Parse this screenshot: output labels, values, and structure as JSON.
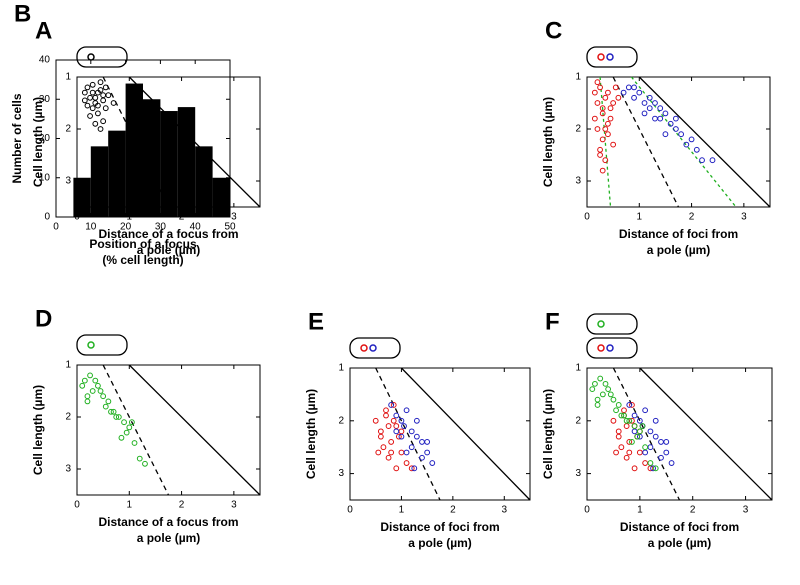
{
  "chart_data": [
    {
      "type": "scatter",
      "panel": "A",
      "ylabel": "Cell length (µm)",
      "xlabel": [
        "Distance of a focus from",
        "a pole (µm)"
      ],
      "xlim": [
        0,
        3.5
      ],
      "ylim": [
        3.5,
        1
      ],
      "xticks": [
        0,
        1,
        2,
        3
      ],
      "yticks": [
        1,
        2,
        3
      ],
      "cell_icons": [
        [
          "#000000"
        ]
      ],
      "lines": [
        {
          "x": [
            1,
            3.5
          ],
          "y": [
            1,
            3.5
          ],
          "color": "#000000",
          "dash": "none"
        },
        {
          "x": [
            0.5,
            1.75
          ],
          "y": [
            1,
            3.5
          ],
          "color": "#000000",
          "dash": "5,4"
        }
      ],
      "series": [
        {
          "color": "#000000",
          "x": [
            0.15,
            0.2,
            0.25,
            0.3,
            0.35,
            0.4,
            0.45,
            0.5,
            0.55,
            0.2,
            0.3,
            0.4,
            0.5,
            0.25,
            0.35,
            0.45,
            0.15,
            0.3,
            0.4,
            0.55,
            0.6,
            0.35,
            0.45,
            0.5,
            0.7
          ],
          "values": [
            1.3,
            1.2,
            1.4,
            1.15,
            1.5,
            1.3,
            1.25,
            1.45,
            1.2,
            1.55,
            1.6,
            1.7,
            1.35,
            1.75,
            1.4,
            1.1,
            1.45,
            1.3,
            1.55,
            1.6,
            1.35,
            1.9,
            2.0,
            1.85,
            1.5
          ]
        }
      ]
    },
    {
      "type": "histogram",
      "panel": "B",
      "ylabel": "Number of cells",
      "xlabel": [
        "Position of a focus",
        "(% cell length)"
      ],
      "xlim": [
        0,
        50
      ],
      "ylim": [
        0,
        40
      ],
      "xticks": [
        0,
        10,
        20,
        30,
        40,
        50
      ],
      "yticks": [
        0,
        10,
        20,
        30,
        40
      ],
      "color": "#000000",
      "bins": [
        5,
        10,
        15,
        20,
        25,
        30,
        35,
        40,
        45,
        50
      ],
      "values": [
        10,
        18,
        22,
        34,
        30,
        27,
        28,
        18,
        10
      ]
    },
    {
      "type": "scatter",
      "panel": "C",
      "ylabel": "Cell length (µm)",
      "xlabel": [
        "Distance of  foci from",
        "a pole (µm)"
      ],
      "xlim": [
        0,
        3.5
      ],
      "ylim": [
        3.5,
        1
      ],
      "xticks": [
        0,
        1,
        2,
        3
      ],
      "yticks": [
        1,
        2,
        3
      ],
      "cell_icons": [
        [
          "#e01010",
          "#2020c0"
        ]
      ],
      "lines": [
        {
          "x": [
            1,
            3.5
          ],
          "y": [
            1,
            3.5
          ],
          "color": "#000000",
          "dash": "none"
        },
        {
          "x": [
            0.5,
            1.75
          ],
          "y": [
            1,
            3.5
          ],
          "color": "#000000",
          "dash": "5,4"
        },
        {
          "x": [
            0.25,
            0.45
          ],
          "y": [
            1,
            3.5
          ],
          "color": "#20b020",
          "dash": "3,3"
        },
        {
          "x": [
            0.85,
            2.85
          ],
          "y": [
            1,
            3.5
          ],
          "color": "#20b020",
          "dash": "3,3"
        }
      ],
      "series": [
        {
          "color": "#e01010",
          "x": [
            0.15,
            0.2,
            0.25,
            0.3,
            0.35,
            0.4,
            0.45,
            0.2,
            0.3,
            0.4,
            0.15,
            0.25,
            0.35,
            0.5,
            0.55,
            0.3,
            0.4,
            0.2,
            0.45,
            0.35,
            0.25,
            0.5,
            0.6,
            0.3
          ],
          "values": [
            1.3,
            1.5,
            1.2,
            1.7,
            1.4,
            1.9,
            1.6,
            2.0,
            2.2,
            1.3,
            1.8,
            2.4,
            2.6,
            1.5,
            1.2,
            2.8,
            2.1,
            1.1,
            1.8,
            2.0,
            2.5,
            2.3,
            1.4,
            1.6
          ]
        },
        {
          "color": "#2020c0",
          "x": [
            0.7,
            0.8,
            0.9,
            1.0,
            1.1,
            1.2,
            1.3,
            1.4,
            1.5,
            1.6,
            1.7,
            1.8,
            1.9,
            2.0,
            2.1,
            2.2,
            2.4,
            0.9,
            1.1,
            1.3,
            1.5,
            1.7,
            1.2,
            1.4
          ],
          "values": [
            1.3,
            1.2,
            1.4,
            1.3,
            1.5,
            1.6,
            1.5,
            1.8,
            1.7,
            1.9,
            2.0,
            2.1,
            2.3,
            2.2,
            2.4,
            2.6,
            2.6,
            1.2,
            1.7,
            1.8,
            2.1,
            1.8,
            1.4,
            1.6
          ]
        }
      ]
    },
    {
      "type": "scatter",
      "panel": "D",
      "ylabel": "Cell length (µm)",
      "xlabel": [
        "Distance of a focus from",
        "a pole (µm)"
      ],
      "xlim": [
        0,
        3.5
      ],
      "ylim": [
        3.5,
        1
      ],
      "xticks": [
        0,
        1,
        2,
        3
      ],
      "yticks": [
        1,
        2,
        3
      ],
      "cell_icons": [
        [
          "#20b020"
        ]
      ],
      "lines": [
        {
          "x": [
            1,
            3.5
          ],
          "y": [
            1,
            3.5
          ],
          "color": "#000000",
          "dash": "none"
        },
        {
          "x": [
            0.5,
            1.75
          ],
          "y": [
            1,
            3.5
          ],
          "color": "#000000",
          "dash": "5,4"
        }
      ],
      "series": [
        {
          "color": "#20b020",
          "x": [
            0.1,
            0.15,
            0.2,
            0.25,
            0.3,
            0.4,
            0.5,
            0.6,
            0.7,
            0.8,
            0.9,
            1.0,
            1.1,
            1.2,
            0.35,
            0.55,
            0.75,
            0.95,
            1.05,
            0.2,
            0.45,
            0.65,
            0.85,
            1.3
          ],
          "values": [
            1.4,
            1.3,
            1.6,
            1.2,
            1.5,
            1.4,
            1.6,
            1.7,
            1.9,
            2.0,
            2.1,
            2.2,
            2.5,
            2.8,
            1.3,
            1.8,
            2.0,
            2.3,
            2.1,
            1.7,
            1.5,
            1.9,
            2.4,
            2.9
          ]
        }
      ]
    },
    {
      "type": "scatter",
      "panel": "E",
      "ylabel": "Cell length (µm)",
      "xlabel": [
        "Distance of foci from",
        "a pole (µm)"
      ],
      "xlim": [
        0,
        3.5
      ],
      "ylim": [
        3.5,
        1
      ],
      "xticks": [
        0,
        1,
        2,
        3
      ],
      "yticks": [
        1,
        2,
        3
      ],
      "cell_icons": [
        [
          "#e01010",
          "#2020c0"
        ]
      ],
      "lines": [
        {
          "x": [
            1,
            3.5
          ],
          "y": [
            1,
            3.5
          ],
          "color": "#000000",
          "dash": "none"
        },
        {
          "x": [
            0.5,
            1.75
          ],
          "y": [
            1,
            3.5
          ],
          "color": "#000000",
          "dash": "5,4"
        }
      ],
      "series": [
        {
          "color": "#e01010",
          "x": [
            0.5,
            0.6,
            0.7,
            0.8,
            0.9,
            1.0,
            0.65,
            0.75,
            0.85,
            0.95,
            1.1,
            0.7,
            0.8,
            0.9,
            1.0,
            0.55,
            0.6,
            1.2,
            0.85,
            0.75
          ],
          "values": [
            2.0,
            2.2,
            1.9,
            2.4,
            2.1,
            2.6,
            2.5,
            2.7,
            2.0,
            2.3,
            2.8,
            1.8,
            2.6,
            2.9,
            2.2,
            2.6,
            2.3,
            2.9,
            1.7,
            2.1
          ]
        },
        {
          "color": "#2020c0",
          "x": [
            0.8,
            0.9,
            1.0,
            1.1,
            1.2,
            1.3,
            1.4,
            1.5,
            1.6,
            1.0,
            1.2,
            1.3,
            0.9,
            1.1,
            1.4,
            1.5,
            1.25,
            1.05
          ],
          "values": [
            1.7,
            1.9,
            2.0,
            1.8,
            2.2,
            2.3,
            2.4,
            2.6,
            2.8,
            2.3,
            2.5,
            2.0,
            2.2,
            2.6,
            2.7,
            2.4,
            2.9,
            2.1
          ]
        }
      ]
    },
    {
      "type": "scatter",
      "panel": "F",
      "ylabel": "Cell length (µm)",
      "xlabel": [
        "Distance of foci from",
        "a pole (µm)"
      ],
      "xlim": [
        0,
        3.5
      ],
      "ylim": [
        3.5,
        1
      ],
      "xticks": [
        0,
        1,
        2,
        3
      ],
      "yticks": [
        1,
        2,
        3
      ],
      "cell_icons": [
        [
          "#20b020"
        ],
        [
          "#e01010",
          "#2020c0"
        ]
      ],
      "lines": [
        {
          "x": [
            1,
            3.5
          ],
          "y": [
            1,
            3.5
          ],
          "color": "#000000",
          "dash": "none"
        },
        {
          "x": [
            0.5,
            1.75
          ],
          "y": [
            1,
            3.5
          ],
          "color": "#000000",
          "dash": "5,4"
        }
      ],
      "series": [
        {
          "color": "#e01010",
          "x": [
            0.5,
            0.6,
            0.7,
            0.8,
            0.9,
            1.0,
            0.65,
            0.75,
            0.85,
            0.95,
            1.1,
            0.7,
            0.8,
            0.9,
            1.0,
            0.55,
            0.6,
            1.2,
            0.85,
            0.75
          ],
          "values": [
            2.0,
            2.2,
            1.9,
            2.4,
            2.1,
            2.6,
            2.5,
            2.7,
            2.0,
            2.3,
            2.8,
            1.8,
            2.6,
            2.9,
            2.2,
            2.6,
            2.3,
            2.9,
            1.7,
            2.1
          ]
        },
        {
          "color": "#2020c0",
          "x": [
            0.8,
            0.9,
            1.0,
            1.1,
            1.2,
            1.3,
            1.4,
            1.5,
            1.6,
            1.0,
            1.2,
            1.3,
            0.9,
            1.1,
            1.4,
            1.5,
            1.25,
            1.05
          ],
          "values": [
            1.7,
            1.9,
            2.0,
            1.8,
            2.2,
            2.3,
            2.4,
            2.6,
            2.8,
            2.3,
            2.5,
            2.0,
            2.2,
            2.6,
            2.7,
            2.4,
            2.9,
            2.1
          ]
        },
        {
          "color": "#20b020",
          "x": [
            0.1,
            0.15,
            0.2,
            0.25,
            0.3,
            0.4,
            0.5,
            0.6,
            0.7,
            0.8,
            0.9,
            1.0,
            1.1,
            1.2,
            0.35,
            0.55,
            0.75,
            0.95,
            1.05,
            0.2,
            0.45,
            0.65,
            0.85,
            1.3
          ],
          "values": [
            1.4,
            1.3,
            1.6,
            1.2,
            1.5,
            1.4,
            1.6,
            1.7,
            1.9,
            2.0,
            2.1,
            2.2,
            2.5,
            2.8,
            1.3,
            1.8,
            2.0,
            2.3,
            2.1,
            1.7,
            1.5,
            1.9,
            2.4,
            2.9
          ]
        }
      ]
    }
  ]
}
